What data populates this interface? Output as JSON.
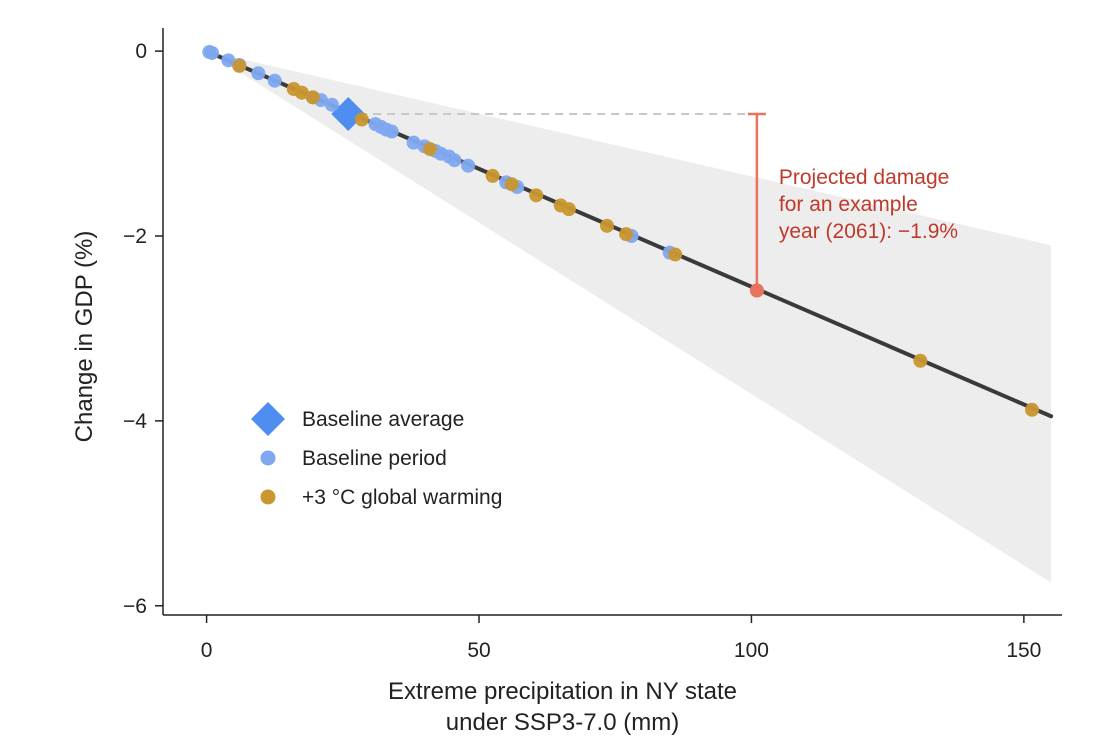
{
  "chart_data": {
    "type": "scatter",
    "xlabel": [
      "Extreme precipitation in NY state",
      "under SSP3-7.0 (mm)"
    ],
    "ylabel": "Change in GDP (%)",
    "xlim": [
      -8,
      157
    ],
    "ylim": [
      -6.1,
      0.25
    ],
    "x_ticks": [
      0,
      50,
      100,
      150
    ],
    "x_tick_labels": [
      "0",
      "50",
      "100",
      "150"
    ],
    "y_ticks": [
      0,
      -2,
      -4,
      -6
    ],
    "y_tick_labels": [
      "0",
      "−2",
      "−4",
      "−6"
    ],
    "grid": false,
    "legend_position": "bottom-left",
    "colors": {
      "baseline": "#7fa8f0",
      "baseline_average": "#4f8ef0",
      "warming": "#c9962f",
      "fit_line": "#3a3a3a",
      "confidence_band": "#ededed",
      "annotation": "#c0392b",
      "annotation_marker": "#e8735f",
      "reference_line": "#c8c8c8"
    },
    "fit_line": {
      "x": [
        0,
        155
      ],
      "y": [
        0,
        -3.95
      ]
    },
    "confidence_band": {
      "x": [
        0,
        155
      ],
      "upper": [
        0,
        -2.1
      ],
      "lower": [
        0,
        -5.75
      ]
    },
    "series": [
      {
        "name": "Baseline average",
        "marker": "diamond",
        "points": [
          [
            26,
            -0.68
          ]
        ]
      },
      {
        "name": "Baseline period",
        "marker": "circle",
        "points": [
          [
            0.5,
            -0.01
          ],
          [
            1,
            -0.02
          ],
          [
            4,
            -0.1
          ],
          [
            6,
            -0.15
          ],
          [
            9.5,
            -0.24
          ],
          [
            12.5,
            -0.32
          ],
          [
            19.5,
            -0.5
          ],
          [
            21,
            -0.53
          ],
          [
            23,
            -0.58
          ],
          [
            31,
            -0.79
          ],
          [
            32,
            -0.82
          ],
          [
            33,
            -0.85
          ],
          [
            34,
            -0.87
          ],
          [
            38,
            -0.99
          ],
          [
            40,
            -1.03
          ],
          [
            42,
            -1.08
          ],
          [
            43,
            -1.11
          ],
          [
            44.5,
            -1.14
          ],
          [
            45.5,
            -1.18
          ],
          [
            48,
            -1.24
          ],
          [
            55,
            -1.42
          ],
          [
            57,
            -1.47
          ],
          [
            78,
            -2.0
          ],
          [
            85,
            -2.18
          ]
        ]
      },
      {
        "name": "+3 °C global warming",
        "marker": "circle",
        "points": [
          [
            6,
            -0.16
          ],
          [
            16,
            -0.41
          ],
          [
            17.5,
            -0.45
          ],
          [
            19.5,
            -0.5
          ],
          [
            28.5,
            -0.74
          ],
          [
            41,
            -1.06
          ],
          [
            52.5,
            -1.35
          ],
          [
            56,
            -1.44
          ],
          [
            60.5,
            -1.56
          ],
          [
            65,
            -1.67
          ],
          [
            66.5,
            -1.71
          ],
          [
            73.5,
            -1.89
          ],
          [
            77,
            -1.98
          ],
          [
            86,
            -2.2
          ],
          [
            101,
            -2.59
          ],
          [
            131,
            -3.35
          ],
          [
            151.5,
            -3.88
          ]
        ]
      }
    ],
    "annotation": {
      "text_lines": [
        "Projected damage",
        "for an example",
        "year (2061): −1.9%"
      ],
      "x": 101,
      "y_top": -0.68,
      "y_bottom": -2.59,
      "reference_x_start": 28
    }
  }
}
